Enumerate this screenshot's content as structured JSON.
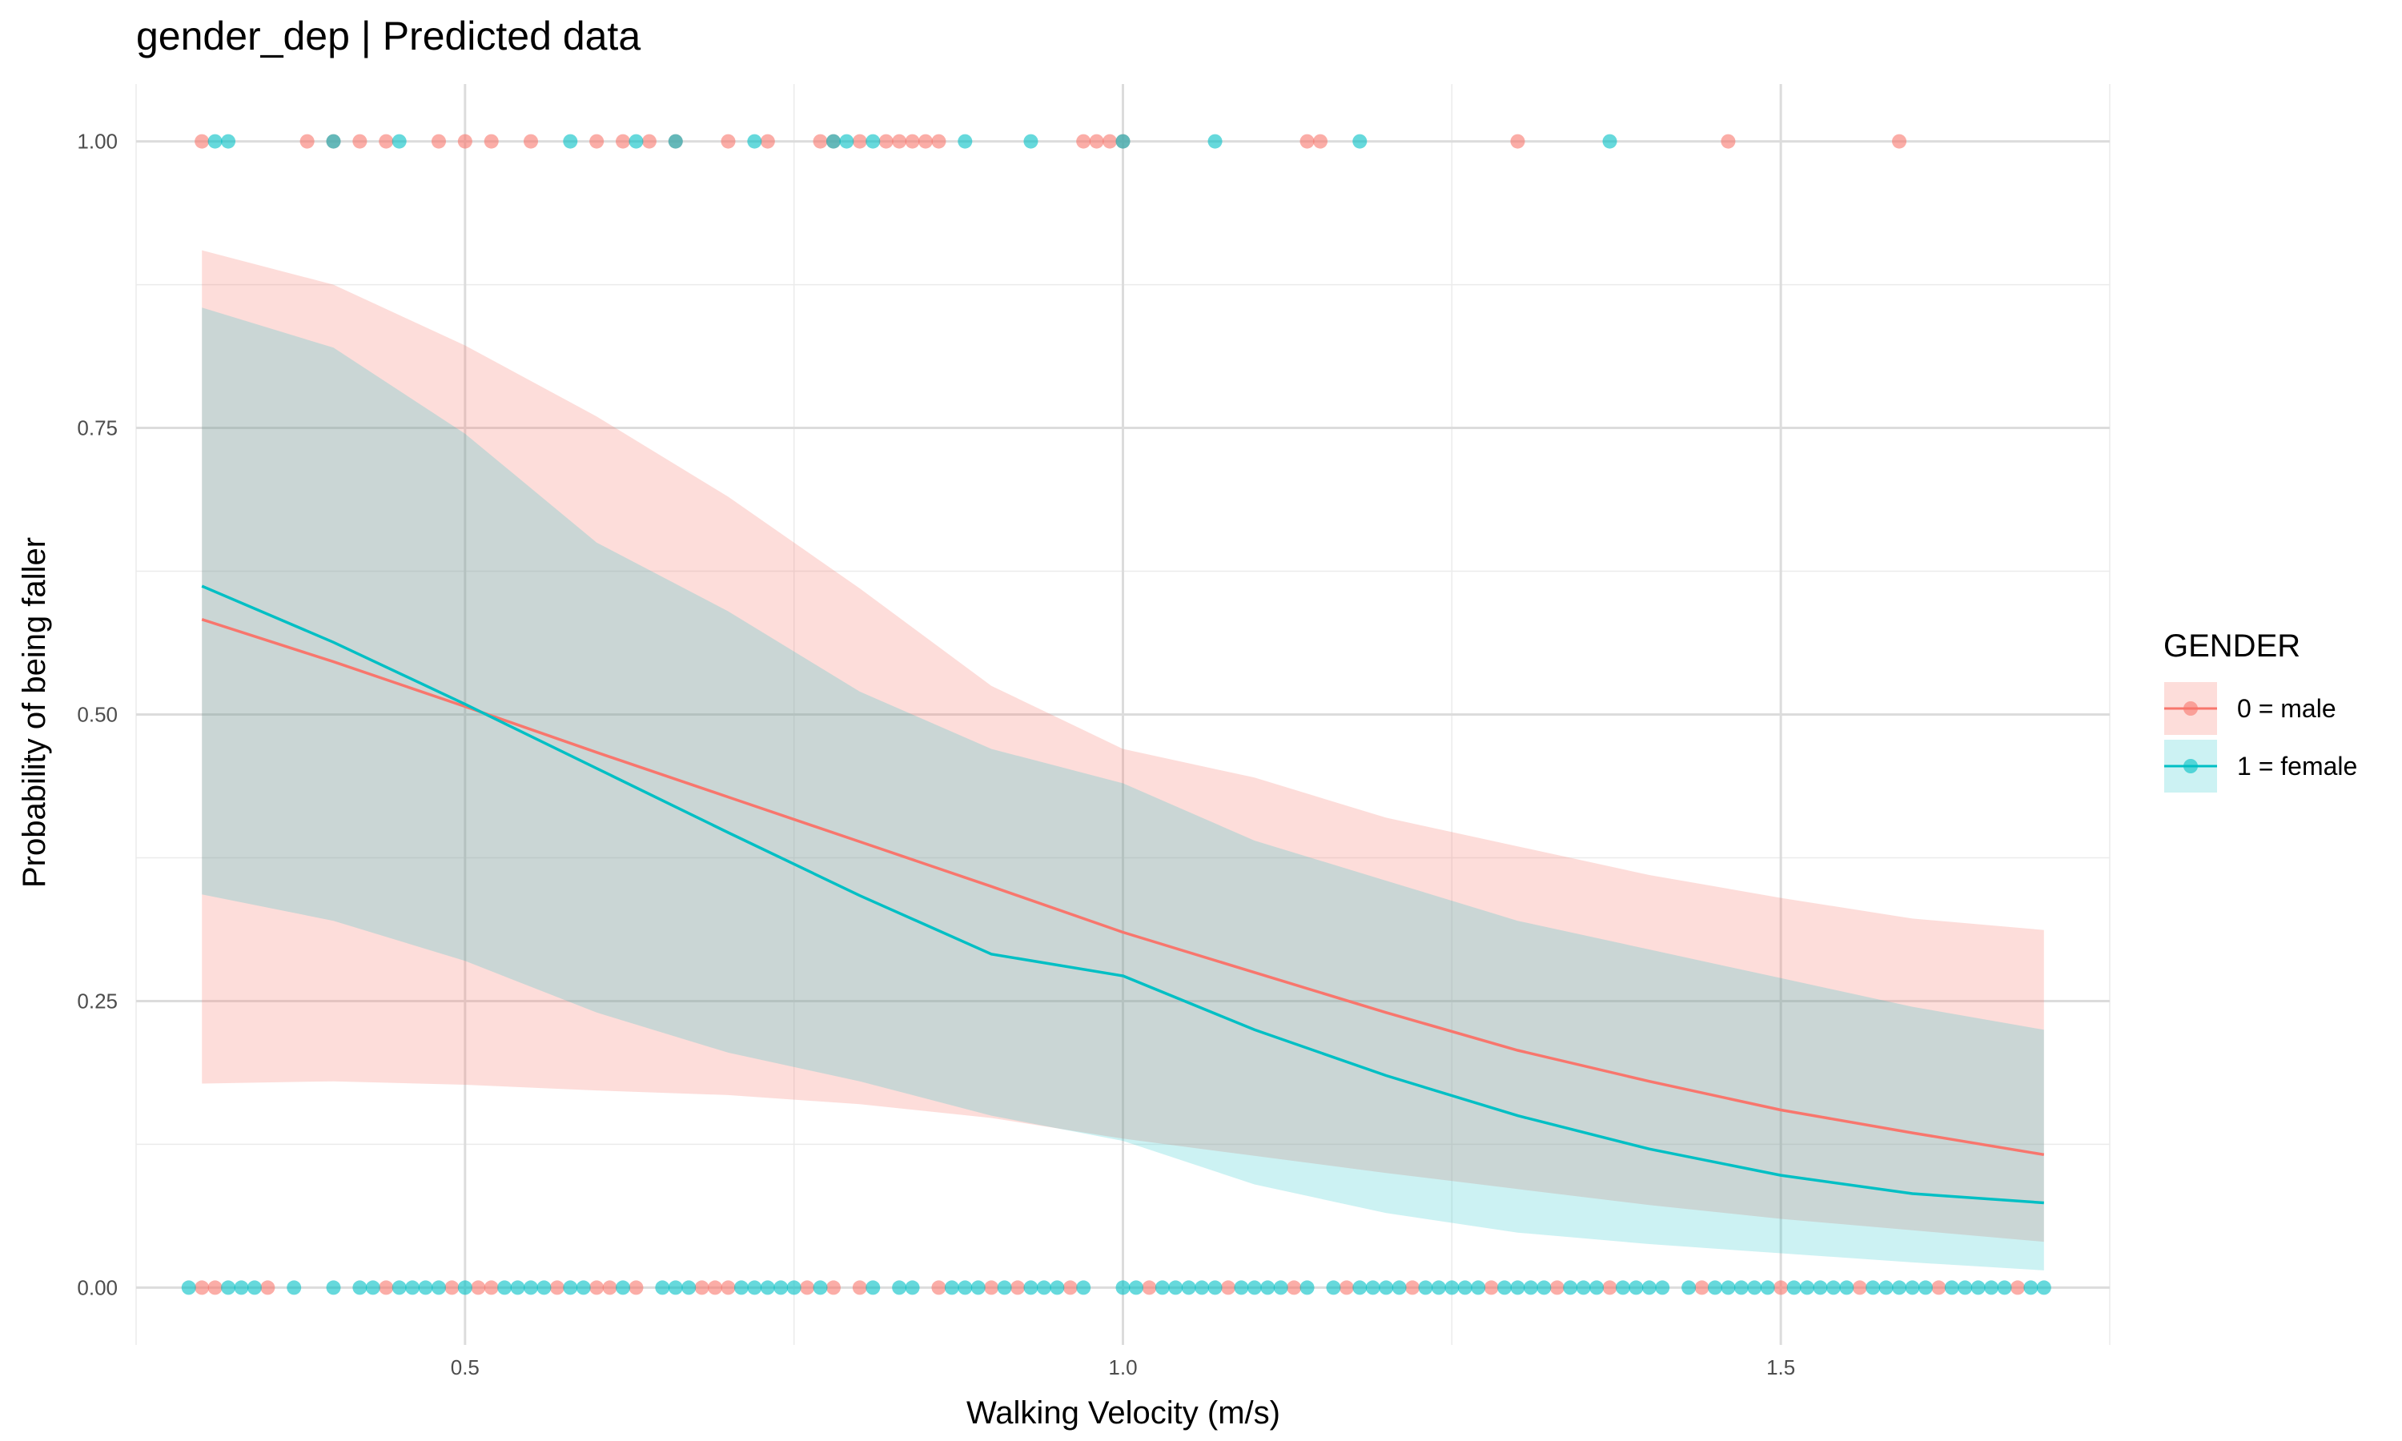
{
  "chart_data": {
    "type": "line",
    "title": "gender_dep | Predicted data",
    "xlabel": "Walking Velocity (m/s)",
    "ylabel": "Probability of being faller",
    "xlim": [
      0.25,
      1.75
    ],
    "ylim": [
      -0.05,
      1.05
    ],
    "x_ticks": [
      0.5,
      1.0,
      1.5
    ],
    "x_tick_labels": [
      "0.5",
      "1.0",
      "1.5"
    ],
    "y_ticks": [
      0,
      0.25,
      0.5,
      0.75,
      1.0
    ],
    "y_tick_labels": [
      "0.00",
      "0.25",
      "0.50",
      "0.75",
      "1.00"
    ],
    "grid": true,
    "legend": {
      "title": "GENDER",
      "position": "right"
    },
    "series": [
      {
        "name": "0 = male",
        "color": "#F8766D",
        "line": {
          "x": [
            0.3,
            0.4,
            0.5,
            0.6,
            0.7,
            0.8,
            0.9,
            1.0,
            1.1,
            1.2,
            1.3,
            1.4,
            1.5,
            1.6,
            1.7
          ],
          "y": [
            0.583,
            0.546,
            0.507,
            0.467,
            0.428,
            0.389,
            0.35,
            0.31,
            0.275,
            0.24,
            0.207,
            0.18,
            0.155,
            0.135,
            0.116
          ]
        },
        "ribbon": {
          "x": [
            0.3,
            0.4,
            0.5,
            0.6,
            0.7,
            0.8,
            0.9,
            1.0,
            1.1,
            1.2,
            1.3,
            1.4,
            1.5,
            1.6,
            1.7
          ],
          "lower": [
            0.178,
            0.18,
            0.177,
            0.172,
            0.168,
            0.16,
            0.148,
            0.13,
            0.115,
            0.1,
            0.086,
            0.072,
            0.06,
            0.05,
            0.04
          ],
          "upper": [
            0.905,
            0.875,
            0.822,
            0.76,
            0.69,
            0.61,
            0.525,
            0.47,
            0.445,
            0.41,
            0.385,
            0.36,
            0.34,
            0.322,
            0.312
          ]
        },
        "points": {
          "y1_x": [
            0.3,
            0.38,
            0.4,
            0.42,
            0.44,
            0.48,
            0.5,
            0.52,
            0.55,
            0.6,
            0.62,
            0.64,
            0.66,
            0.7,
            0.73,
            0.77,
            0.78,
            0.8,
            0.82,
            0.83,
            0.84,
            0.85,
            0.86,
            0.97,
            0.98,
            0.99,
            1.0,
            1.14,
            1.15,
            1.3,
            1.46,
            1.59
          ],
          "y0_x": [
            0.3,
            0.31,
            0.35,
            0.44,
            0.49,
            0.51,
            0.52,
            0.57,
            0.6,
            0.61,
            0.63,
            0.68,
            0.69,
            0.7,
            0.76,
            0.78,
            0.8,
            0.86,
            0.9,
            0.92,
            0.96,
            1.02,
            1.08,
            1.13,
            1.17,
            1.22,
            1.28,
            1.33,
            1.37,
            1.44,
            1.5,
            1.56,
            1.62,
            1.68
          ]
        }
      },
      {
        "name": "1 = female",
        "color": "#00BFC4",
        "line": {
          "x": [
            0.3,
            0.4,
            0.5,
            0.6,
            0.7,
            0.8,
            0.9,
            1.0,
            1.1,
            1.2,
            1.3,
            1.4,
            1.5,
            1.6,
            1.7
          ],
          "y": [
            0.612,
            0.563,
            0.509,
            0.453,
            0.397,
            0.342,
            0.291,
            0.272,
            0.225,
            0.185,
            0.15,
            0.121,
            0.098,
            0.082,
            0.074
          ]
        },
        "ribbon": {
          "x": [
            0.3,
            0.4,
            0.5,
            0.6,
            0.7,
            0.8,
            0.9,
            1.0,
            1.1,
            1.2,
            1.3,
            1.4,
            1.5,
            1.6,
            1.7
          ],
          "lower": [
            0.343,
            0.32,
            0.285,
            0.24,
            0.205,
            0.18,
            0.15,
            0.128,
            0.09,
            0.065,
            0.048,
            0.038,
            0.03,
            0.022,
            0.015
          ],
          "upper": [
            0.855,
            0.82,
            0.745,
            0.65,
            0.59,
            0.52,
            0.47,
            0.44,
            0.39,
            0.355,
            0.32,
            0.295,
            0.27,
            0.245,
            0.225
          ]
        },
        "points": {
          "y1_x": [
            0.31,
            0.32,
            0.4,
            0.45,
            0.58,
            0.63,
            0.66,
            0.72,
            0.78,
            0.79,
            0.81,
            0.88,
            0.93,
            1.0,
            1.07,
            1.18,
            1.37
          ],
          "y0_x": [
            0.29,
            0.32,
            0.33,
            0.34,
            0.37,
            0.4,
            0.42,
            0.43,
            0.45,
            0.46,
            0.47,
            0.48,
            0.5,
            0.53,
            0.54,
            0.55,
            0.56,
            0.58,
            0.59,
            0.62,
            0.65,
            0.66,
            0.67,
            0.71,
            0.72,
            0.73,
            0.74,
            0.75,
            0.77,
            0.81,
            0.83,
            0.84,
            0.87,
            0.88,
            0.89,
            0.91,
            0.93,
            0.94,
            0.95,
            0.97,
            1.0,
            1.01,
            1.03,
            1.04,
            1.05,
            1.06,
            1.07,
            1.09,
            1.1,
            1.11,
            1.12,
            1.14,
            1.16,
            1.18,
            1.19,
            1.2,
            1.21,
            1.23,
            1.24,
            1.25,
            1.26,
            1.27,
            1.29,
            1.3,
            1.31,
            1.32,
            1.34,
            1.35,
            1.36,
            1.38,
            1.39,
            1.4,
            1.41,
            1.43,
            1.45,
            1.46,
            1.47,
            1.48,
            1.49,
            1.51,
            1.52,
            1.53,
            1.54,
            1.55,
            1.57,
            1.58,
            1.59,
            1.6,
            1.61,
            1.63,
            1.64,
            1.65,
            1.66,
            1.67,
            1.69,
            1.7
          ]
        }
      }
    ]
  }
}
